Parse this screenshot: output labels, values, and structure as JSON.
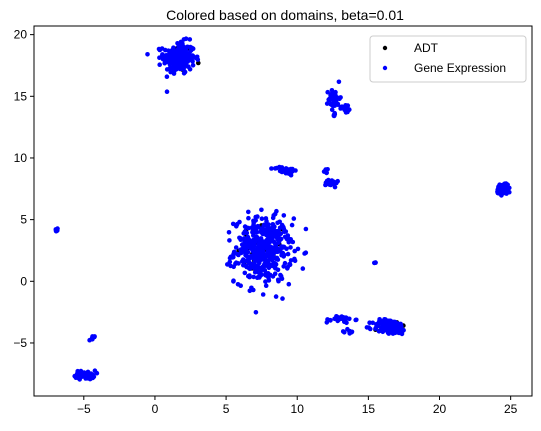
{
  "chart_data": {
    "type": "scatter",
    "title": "Colored based on domains, beta=0.01",
    "xlabel": "",
    "ylabel": "",
    "xlim": [
      -8.5,
      26.5
    ],
    "ylim": [
      -9.3,
      20.7
    ],
    "xticks": [
      -5,
      0,
      5,
      10,
      15,
      20,
      25
    ],
    "yticks": [
      -5,
      0,
      5,
      10,
      15,
      20
    ],
    "grid": false,
    "legend": {
      "placement": "top-right"
    },
    "series": [
      {
        "name": "ADT",
        "color": "#000000",
        "clusters": [
          {
            "x": 1.8,
            "y": 18.1,
            "sx": 0.45,
            "sy": 0.55,
            "n": 30
          },
          {
            "x": 7.6,
            "y": 2.5,
            "sx": 0.9,
            "sy": 1.2,
            "n": 40
          },
          {
            "x": 16.6,
            "y": -3.8,
            "sx": 0.6,
            "sy": 0.3,
            "n": 12
          }
        ]
      },
      {
        "name": "Gene Expression",
        "color": "#0000ff",
        "clusters": [
          {
            "x": 1.7,
            "y": 18.1,
            "sx": 0.55,
            "sy": 0.65,
            "n": 220
          },
          {
            "x": -6.9,
            "y": 4.2,
            "sx": 0.05,
            "sy": 0.06,
            "n": 6
          },
          {
            "x": -4.9,
            "y": -7.6,
            "sx": 0.35,
            "sy": 0.18,
            "n": 55
          },
          {
            "x": -4.4,
            "y": -4.6,
            "sx": 0.12,
            "sy": 0.1,
            "n": 8
          },
          {
            "x": 7.6,
            "y": 2.5,
            "sx": 1.0,
            "sy": 1.3,
            "n": 450
          },
          {
            "x": 9.2,
            "y": 9.0,
            "sx": 0.4,
            "sy": 0.15,
            "n": 40
          },
          {
            "x": 12.0,
            "y": 8.9,
            "sx": 0.15,
            "sy": 0.1,
            "n": 8
          },
          {
            "x": 12.4,
            "y": 8.0,
            "sx": 0.2,
            "sy": 0.18,
            "n": 22
          },
          {
            "x": 12.6,
            "y": 14.8,
            "sx": 0.2,
            "sy": 0.4,
            "n": 35
          },
          {
            "x": 13.4,
            "y": 14.0,
            "sx": 0.2,
            "sy": 0.18,
            "n": 18
          },
          {
            "x": 12.6,
            "y": 13.6,
            "sx": 0.1,
            "sy": 0.15,
            "n": 6
          },
          {
            "x": 13.0,
            "y": -3.1,
            "sx": 0.5,
            "sy": 0.15,
            "n": 22
          },
          {
            "x": 13.7,
            "y": -4.1,
            "sx": 0.15,
            "sy": 0.15,
            "n": 8
          },
          {
            "x": 15.5,
            "y": 1.5,
            "sx": 0.03,
            "sy": 0.03,
            "n": 3
          },
          {
            "x": 16.5,
            "y": -3.7,
            "sx": 0.6,
            "sy": 0.3,
            "n": 120
          },
          {
            "x": 24.5,
            "y": 7.5,
            "sx": 0.25,
            "sy": 0.25,
            "n": 55
          }
        ]
      }
    ]
  }
}
